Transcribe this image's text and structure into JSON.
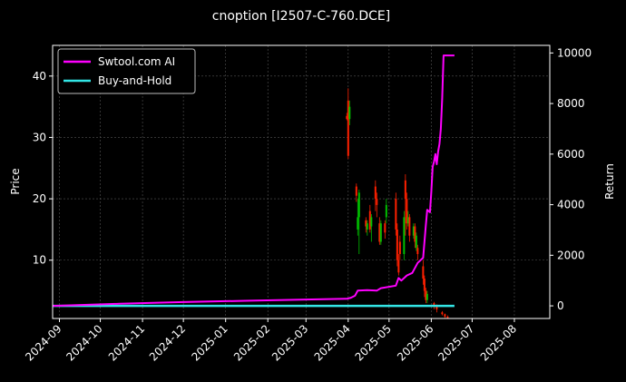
{
  "chart_data": {
    "type": "candlestick+line",
    "title": "cnoption [I2507-C-760.DCE]",
    "ylabel_left": "Price",
    "ylabel_right": "Return",
    "left_ylim": [
      0.5,
      45
    ],
    "left_yticks": [
      10,
      20,
      30,
      40
    ],
    "right_ylim": [
      -500,
      10300
    ],
    "right_yticks": [
      0,
      2000,
      4000,
      6000,
      8000,
      10000
    ],
    "x_ticks": [
      "2024-09",
      "2024-10",
      "2024-11",
      "2024-12",
      "2025-01",
      "2025-02",
      "2025-03",
      "2025-04",
      "2025-05",
      "2025-06",
      "2025-07",
      "2025-08"
    ],
    "grid": true,
    "legend_position": "top-left",
    "colors": {
      "strategy": "#ff00ff",
      "buy_hold": "#33e6e6",
      "up": "#00c000",
      "down": "#ff2000",
      "grid": "#555555"
    },
    "series": [
      {
        "name": "Swtool.com AI",
        "axis": "right",
        "points": [
          [
            "2024-08-27",
            0
          ],
          [
            "2024-10-15",
            80
          ],
          [
            "2024-12-01",
            150
          ],
          [
            "2025-01-15",
            200
          ],
          [
            "2025-03-01",
            250
          ],
          [
            "2025-03-31",
            280
          ],
          [
            "2025-04-03",
            320
          ],
          [
            "2025-04-06",
            400
          ],
          [
            "2025-04-08",
            600
          ],
          [
            "2025-04-15",
            620
          ],
          [
            "2025-04-22",
            600
          ],
          [
            "2025-04-25",
            700
          ],
          [
            "2025-05-06",
            800
          ],
          [
            "2025-05-08",
            1100
          ],
          [
            "2025-05-10",
            1000
          ],
          [
            "2025-05-14",
            1200
          ],
          [
            "2025-05-18",
            1300
          ],
          [
            "2025-05-22",
            1700
          ],
          [
            "2025-05-26",
            1900
          ],
          [
            "2025-05-28",
            3200
          ],
          [
            "2025-05-29",
            3800
          ],
          [
            "2025-05-31",
            3700
          ],
          [
            "2025-06-01",
            4500
          ],
          [
            "2025-06-02",
            5500
          ],
          [
            "2025-06-03",
            5700
          ],
          [
            "2025-06-04",
            6000
          ],
          [
            "2025-06-05",
            5600
          ],
          [
            "2025-06-06",
            6100
          ],
          [
            "2025-06-07",
            6400
          ],
          [
            "2025-06-08",
            7000
          ],
          [
            "2025-06-09",
            8200
          ],
          [
            "2025-06-10",
            9900
          ],
          [
            "2025-06-18",
            9900
          ]
        ]
      },
      {
        "name": "Buy-and-Hold",
        "axis": "right",
        "points": [
          [
            "2024-08-27",
            0
          ],
          [
            "2025-06-18",
            0
          ]
        ]
      }
    ],
    "candles": [
      {
        "date": "2025-03-31",
        "open": 33.5,
        "close": 33.0,
        "high": 34.0,
        "low": 32.8
      },
      {
        "date": "2025-04-01",
        "open": 36.0,
        "close": 27.0,
        "high": 38.0,
        "low": 26.5
      },
      {
        "date": "2025-04-02",
        "open": 33.0,
        "close": 35.0,
        "high": 36.0,
        "low": 32.0
      },
      {
        "date": "2025-04-07",
        "open": 22.0,
        "close": 20.5,
        "high": 22.5,
        "low": 19.5
      },
      {
        "date": "2025-04-08",
        "open": 15.0,
        "close": 17.0,
        "high": 20.0,
        "low": 14.0
      },
      {
        "date": "2025-04-09",
        "open": 17.0,
        "close": 21.0,
        "high": 21.5,
        "low": 11.0
      },
      {
        "date": "2025-04-14",
        "open": 16.5,
        "close": 15.5,
        "high": 17.0,
        "low": 14.5
      },
      {
        "date": "2025-04-15",
        "open": 15.0,
        "close": 16.0,
        "high": 16.5,
        "low": 14.0
      },
      {
        "date": "2025-04-17",
        "open": 18.0,
        "close": 15.0,
        "high": 19.0,
        "low": 14.5
      },
      {
        "date": "2025-04-18",
        "open": 15.5,
        "close": 17.0,
        "high": 17.5,
        "low": 13.0
      },
      {
        "date": "2025-04-21",
        "open": 22.0,
        "close": 20.0,
        "high": 23.0,
        "low": 18.0
      },
      {
        "date": "2025-04-22",
        "open": 20.0,
        "close": 19.0,
        "high": 21.0,
        "low": 17.0
      },
      {
        "date": "2025-04-24",
        "open": 16.0,
        "close": 13.0,
        "high": 17.0,
        "low": 12.5
      },
      {
        "date": "2025-04-25",
        "open": 13.0,
        "close": 16.0,
        "high": 16.5,
        "low": 12.5
      },
      {
        "date": "2025-04-28",
        "open": 16.0,
        "close": 14.5,
        "high": 16.5,
        "low": 13.5
      },
      {
        "date": "2025-04-29",
        "open": 17.0,
        "close": 19.0,
        "high": 20.0,
        "low": 16.0
      },
      {
        "date": "2025-05-06",
        "open": 20.0,
        "close": 15.0,
        "high": 21.0,
        "low": 14.0
      },
      {
        "date": "2025-05-07",
        "open": 15.0,
        "close": 10.0,
        "high": 16.0,
        "low": 9.0
      },
      {
        "date": "2025-05-08",
        "open": 10.0,
        "close": 8.0,
        "high": 11.0,
        "low": 7.5
      },
      {
        "date": "2025-05-09",
        "open": 13.0,
        "close": 11.0,
        "high": 14.0,
        "low": 10.0
      },
      {
        "date": "2025-05-12",
        "open": 11.0,
        "close": 17.0,
        "high": 18.0,
        "low": 10.0
      },
      {
        "date": "2025-05-13",
        "open": 23.0,
        "close": 20.0,
        "high": 24.0,
        "low": 14.0
      },
      {
        "date": "2025-05-14",
        "open": 20.0,
        "close": 16.0,
        "high": 21.0,
        "low": 15.0
      },
      {
        "date": "2025-05-15",
        "open": 16.0,
        "close": 17.0,
        "high": 18.0,
        "low": 15.5
      },
      {
        "date": "2025-05-16",
        "open": 17.0,
        "close": 14.0,
        "high": 17.5,
        "low": 13.0
      },
      {
        "date": "2025-05-19",
        "open": 14.0,
        "close": 15.5,
        "high": 16.0,
        "low": 13.5
      },
      {
        "date": "2025-05-20",
        "open": 15.5,
        "close": 13.0,
        "high": 16.0,
        "low": 12.0
      },
      {
        "date": "2025-05-21",
        "open": 12.0,
        "close": 14.0,
        "high": 14.5,
        "low": 11.5
      },
      {
        "date": "2025-05-22",
        "open": 12.0,
        "close": 11.0,
        "high": 12.5,
        "low": 10.0
      },
      {
        "date": "2025-05-26",
        "open": 9.0,
        "close": 7.0,
        "high": 10.0,
        "low": 6.0
      },
      {
        "date": "2025-05-27",
        "open": 7.0,
        "close": 5.0,
        "high": 7.5,
        "low": 4.0
      },
      {
        "date": "2025-05-28",
        "open": 5.0,
        "close": 3.5,
        "high": 5.5,
        "low": 3.0
      },
      {
        "date": "2025-05-29",
        "open": 3.5,
        "close": 4.5,
        "high": 5.0,
        "low": 3.0
      },
      {
        "date": "2025-06-03",
        "open": 3.0,
        "close": 2.5,
        "high": 3.2,
        "low": 2.0
      },
      {
        "date": "2025-06-05",
        "open": 2.5,
        "close": 2.0,
        "high": 2.8,
        "low": 1.5
      },
      {
        "date": "2025-06-09",
        "open": 1.5,
        "close": 1.2,
        "high": 1.7,
        "low": 1.0
      },
      {
        "date": "2025-06-11",
        "open": 1.2,
        "close": 0.8,
        "high": 1.3,
        "low": 0.6
      },
      {
        "date": "2025-06-13",
        "open": 0.8,
        "close": 0.6,
        "high": 1.0,
        "low": 0.5
      }
    ]
  }
}
